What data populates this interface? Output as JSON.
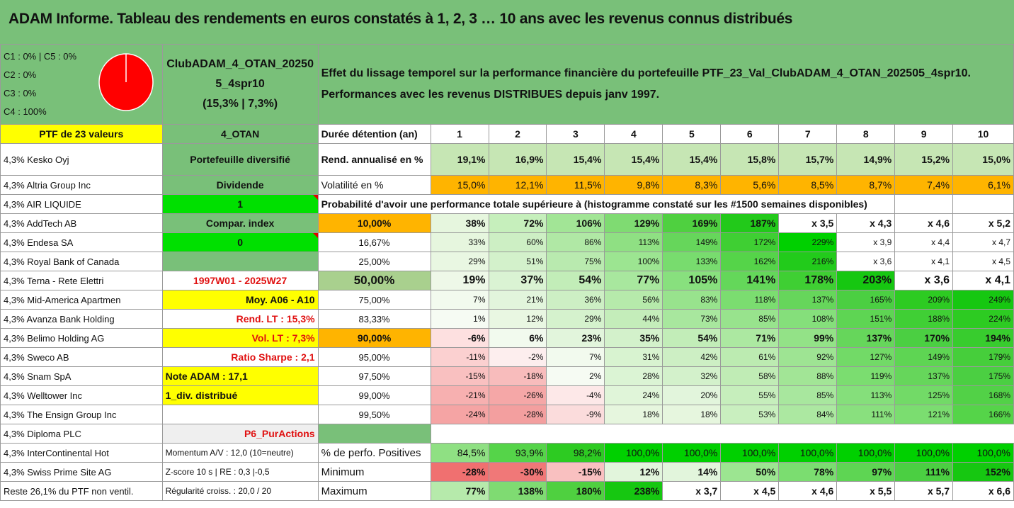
{
  "title": "ADAM Informe. Tableau des rendements en euros constatés à 1, 2, 3 … 10 ans avec les revenus connus distribués",
  "allocation": [
    "C1 : 0% | C5 : 0%",
    "C2 : 0%",
    "C3 : 0%",
    "C4 : 100%"
  ],
  "pie": {
    "color": "#ff0000",
    "share": 1.0
  },
  "portfolio": {
    "name_line1": "ClubADAM_4_OTAN_20250",
    "name_line2": "5_4spr10",
    "stats": "(15,3% | 7,3%)"
  },
  "description": {
    "line1": "Effet du lissage temporel sur la performance financière du portefeuille PTF_23_Val_ClubADAM_4_OTAN_202505_4spr10.",
    "line2": "Performances avec les revenus DISTRIBUES depuis janv 1997."
  },
  "ptf_label": "PTF de 23 valeurs",
  "ptf_code": "4_OTAN",
  "duree_label": "Durée détention (an)",
  "years": [
    "1",
    "2",
    "3",
    "4",
    "5",
    "6",
    "7",
    "8",
    "9",
    "10"
  ],
  "holdings": [
    "4,3% Kesko Oyj",
    "4,3% Altria Group Inc",
    "4,3% AIR LIQUIDE",
    "4,3% AddTech AB",
    "4,3% Endesa SA",
    "4,3% Royal Bank of Canada",
    "4,3% Terna - Rete Elettri",
    "4,3% Mid-America Apartmen",
    "4,3% Avanza Bank Holding",
    "4,3% Belimo Holding AG",
    "4,3% Sweco AB",
    "4,3% Snam SpA",
    "4,3% Welltower Inc",
    "4,3% The Ensign Group Inc",
    "4,3% Diploma PLC",
    "4,3% InterContinental Hot",
    "4,3% Swiss Prime Site AG",
    "Reste 26,1% du PTF non ventil."
  ],
  "info": {
    "portefeuille": "Portefeuille diversifié",
    "dividende": "Dividende",
    "one": "1",
    "compar": "Compar. index",
    "zero": "0",
    "periode": "1997W01 - 2025W27",
    "moy": "Moy. A06 - A10",
    "rend_lt": "Rend. LT : 15,3%",
    "vol_lt": "Vol. LT : 7,3%",
    "sharpe": "Ratio Sharpe : 2,1",
    "note": "Note ADAM : 17,1",
    "div": "1_div. distribué",
    "p6": "P6_PurActions",
    "momentum": "Momentum A/V : 12,0 (10=neutre)",
    "zscore": "Z-score 10 s | RE : 0,3 |-0,5",
    "regularite": "Régularité croiss. : 20,0 / 20"
  },
  "rend": {
    "label": "Rend. annualisé en %",
    "values": [
      "19,1%",
      "16,9%",
      "15,4%",
      "15,4%",
      "15,4%",
      "15,8%",
      "15,7%",
      "14,9%",
      "15,2%",
      "15,0%"
    ]
  },
  "vol": {
    "label": "Volatilité en %",
    "values": [
      "15,0%",
      "12,1%",
      "11,5%",
      "9,8%",
      "8,3%",
      "5,6%",
      "8,5%",
      "8,7%",
      "7,4%",
      "6,1%"
    ]
  },
  "proba_title": "Probabilité d'avoir une performance totale supérieure à (histogramme constaté sur les #1500 semaines disponibles)",
  "proba_rows": [
    {
      "p": "10,00%",
      "v": [
        "38%",
        "72%",
        "106%",
        "129%",
        "169%",
        "187%",
        "x 3,5",
        "x 4,3",
        "x 4,6",
        "x 5,2"
      ]
    },
    {
      "p": "16,67%",
      "v": [
        "33%",
        "60%",
        "86%",
        "113%",
        "149%",
        "172%",
        "229%",
        "x 3,9",
        "x 4,4",
        "x 4,7"
      ]
    },
    {
      "p": "25,00%",
      "v": [
        "29%",
        "51%",
        "75%",
        "100%",
        "133%",
        "162%",
        "216%",
        "x 3,6",
        "x 4,1",
        "x 4,5"
      ]
    },
    {
      "p": "50,00%",
      "v": [
        "19%",
        "37%",
        "54%",
        "77%",
        "105%",
        "141%",
        "178%",
        "203%",
        "x 3,6",
        "x 4,1"
      ]
    },
    {
      "p": "75,00%",
      "v": [
        "7%",
        "21%",
        "36%",
        "56%",
        "83%",
        "118%",
        "137%",
        "165%",
        "209%",
        "249%"
      ]
    },
    {
      "p": "83,33%",
      "v": [
        "1%",
        "12%",
        "29%",
        "44%",
        "73%",
        "85%",
        "108%",
        "151%",
        "188%",
        "224%"
      ]
    },
    {
      "p": "90,00%",
      "v": [
        "-6%",
        "6%",
        "23%",
        "35%",
        "54%",
        "71%",
        "99%",
        "137%",
        "170%",
        "194%"
      ]
    },
    {
      "p": "95,00%",
      "v": [
        "-11%",
        "-2%",
        "7%",
        "31%",
        "42%",
        "61%",
        "92%",
        "127%",
        "149%",
        "179%"
      ]
    },
    {
      "p": "97,50%",
      "v": [
        "-15%",
        "-18%",
        "2%",
        "28%",
        "32%",
        "58%",
        "88%",
        "119%",
        "137%",
        "175%"
      ]
    },
    {
      "p": "99,00%",
      "v": [
        "-21%",
        "-26%",
        "-4%",
        "24%",
        "20%",
        "55%",
        "85%",
        "113%",
        "125%",
        "168%"
      ]
    },
    {
      "p": "99,50%",
      "v": [
        "-24%",
        "-28%",
        "-9%",
        "18%",
        "18%",
        "53%",
        "84%",
        "111%",
        "121%",
        "166%"
      ]
    }
  ],
  "pos": {
    "label": "% de perfo. Positives",
    "values": [
      "84,5%",
      "93,9%",
      "98,2%",
      "100,0%",
      "100,0%",
      "100,0%",
      "100,0%",
      "100,0%",
      "100,0%",
      "100,0%"
    ]
  },
  "min": {
    "label": "Minimum",
    "values": [
      "-28%",
      "-30%",
      "-15%",
      "12%",
      "14%",
      "50%",
      "78%",
      "97%",
      "111%",
      "152%"
    ]
  },
  "max": {
    "label": "Maximum",
    "values": [
      "77%",
      "138%",
      "180%",
      "238%",
      "x 3,7",
      "x 4,5",
      "x 4,6",
      "x 5,5",
      "x 5,7",
      "x 6,6"
    ]
  },
  "colors": {
    "header_green": "#79c079",
    "bright_green": "#00e000",
    "yellow": "#ffff00",
    "orange": "#ffb400",
    "red_text": "#e01010"
  }
}
